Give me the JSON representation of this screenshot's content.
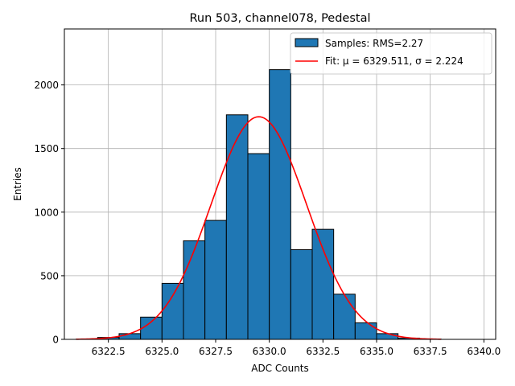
{
  "chart_data": {
    "type": "histogram",
    "title": "Run 503, channel078, Pedestal",
    "xlabel": "ADC Counts",
    "ylabel": "Entries",
    "xlim": [
      6320.45,
      6340.55
    ],
    "ylim": [
      0,
      2440
    ],
    "xticks": [
      6322.5,
      6325.0,
      6327.5,
      6330.0,
      6332.5,
      6335.0,
      6337.5,
      6340.0
    ],
    "xtick_labels": [
      "6322.5",
      "6325.0",
      "6327.5",
      "6330.0",
      "6332.5",
      "6335.0",
      "6337.5",
      "6340.0"
    ],
    "yticks": [
      0,
      500,
      1000,
      1500,
      2000
    ],
    "ytick_labels": [
      "0",
      "500",
      "1000",
      "1500",
      "2000"
    ],
    "grid": true,
    "legend_position": "top-right",
    "bin_edges": [
      6321.0,
      6322.0,
      6323.0,
      6324.0,
      6325.0,
      6326.0,
      6327.0,
      6328.0,
      6329.0,
      6330.0,
      6331.0,
      6332.0,
      6333.0,
      6334.0,
      6335.0,
      6336.0,
      6337.0,
      6338.0
    ],
    "counts": [
      2,
      15,
      45,
      175,
      440,
      775,
      935,
      1765,
      1460,
      2120,
      705,
      865,
      355,
      130,
      45,
      10,
      3
    ],
    "fit": {
      "mu": 6329.511,
      "sigma": 2.224,
      "amplitude": 1750,
      "x_range": [
        6321.0,
        6338.0
      ]
    },
    "series": [
      {
        "name": "Samples: RMS=2.27",
        "kind": "histogram",
        "color": "#1f77b4",
        "edgecolor": "#000000"
      },
      {
        "name": "Fit: μ = 6329.511, σ = 2.224",
        "kind": "line",
        "color": "#ff0000"
      }
    ]
  }
}
